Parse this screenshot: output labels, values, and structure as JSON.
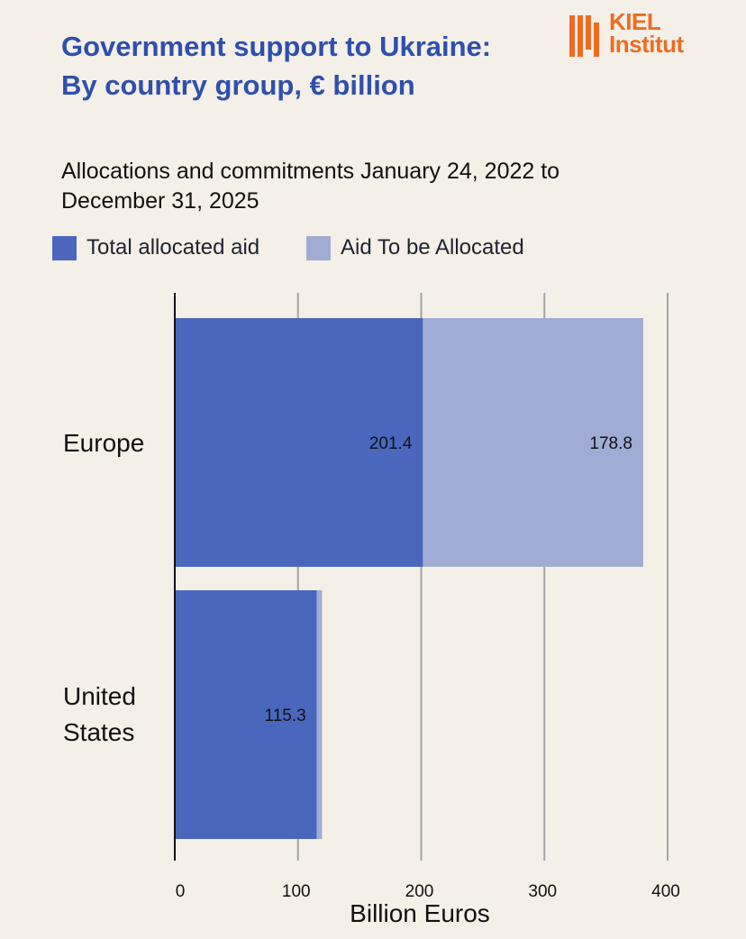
{
  "logo": {
    "line1": "KIEL",
    "line2": "Institut",
    "color": "#ef6b22"
  },
  "chart_data": {
    "type": "bar",
    "orientation": "horizontal",
    "stacked": true,
    "title": "Government support to Ukraine: By country group, € billion",
    "subtitle": "Allocations and commitments January 24, 2022 to December 31, 2025",
    "categories": [
      "Europe",
      "United States"
    ],
    "series": [
      {
        "name": "Total allocated aid",
        "color": "#4a67bd",
        "values": [
          201.4,
          115.3
        ],
        "labels": [
          "201.4",
          "115.3"
        ]
      },
      {
        "name": "Aid To be Allocated",
        "color": "#a0acd4",
        "values": [
          178.8,
          4.2
        ],
        "labels": [
          "178.8",
          ""
        ]
      }
    ],
    "xlabel": "Billion Euros",
    "xlim": [
      0,
      400
    ],
    "xticks": [
      0,
      100,
      200,
      300,
      400
    ],
    "grid": true,
    "legend": "top-left"
  }
}
